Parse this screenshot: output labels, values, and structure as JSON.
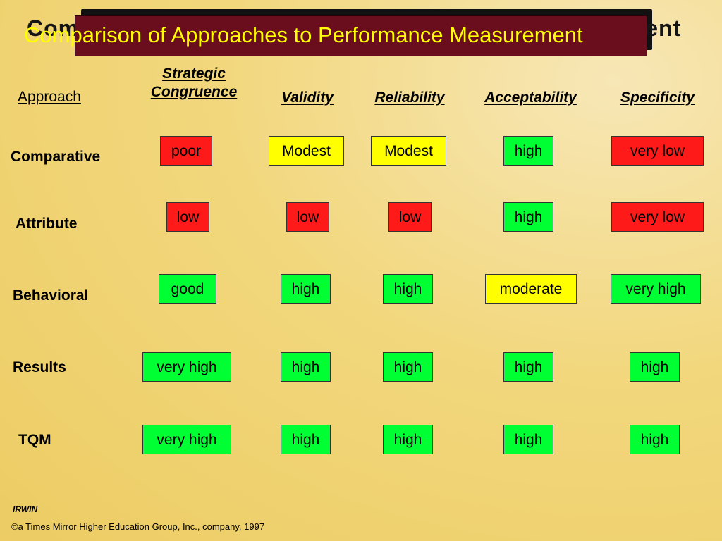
{
  "title": "Comparison of Approaches to Performance Measurement",
  "headers": {
    "approach": "Approach",
    "strategic_congruence": "Strategic Congruence",
    "validity": "Validity",
    "reliability": "Reliability",
    "acceptability": "Acceptability",
    "specificity": "Specificity"
  },
  "rows": [
    {
      "label": "Comparative",
      "cells": [
        {
          "value": "poor",
          "color": "#ff1a1a"
        },
        {
          "value": "Modest",
          "color": "#ffff00"
        },
        {
          "value": "Modest",
          "color": "#ffff00"
        },
        {
          "value": "high",
          "color": "#00ff33"
        },
        {
          "value": "very low",
          "color": "#ff1a1a"
        }
      ]
    },
    {
      "label": "Attribute",
      "cells": [
        {
          "value": "low",
          "color": "#ff1a1a"
        },
        {
          "value": "low",
          "color": "#ff1a1a"
        },
        {
          "value": "low",
          "color": "#ff1a1a"
        },
        {
          "value": "high",
          "color": "#00ff33"
        },
        {
          "value": "very low",
          "color": "#ff1a1a"
        }
      ]
    },
    {
      "label": "Behavioral",
      "cells": [
        {
          "value": "good",
          "color": "#00ff33"
        },
        {
          "value": "high",
          "color": "#00ff33"
        },
        {
          "value": "high",
          "color": "#00ff33"
        },
        {
          "value": "moderate",
          "color": "#ffff00"
        },
        {
          "value": "very high",
          "color": "#00ff33"
        }
      ]
    },
    {
      "label": "Results",
      "cells": [
        {
          "value": "very high",
          "color": "#00ff33"
        },
        {
          "value": "high",
          "color": "#00ff33"
        },
        {
          "value": "high",
          "color": "#00ff33"
        },
        {
          "value": "high",
          "color": "#00ff33"
        },
        {
          "value": "high",
          "color": "#00ff33"
        }
      ]
    },
    {
      "label": "TQM",
      "cells": [
        {
          "value": "very high",
          "color": "#00ff33"
        },
        {
          "value": "high",
          "color": "#00ff33"
        },
        {
          "value": "high",
          "color": "#00ff33"
        },
        {
          "value": "high",
          "color": "#00ff33"
        },
        {
          "value": "high",
          "color": "#00ff33"
        }
      ]
    }
  ],
  "footer": {
    "publisher": "IRWIN",
    "copyright": "©a Times Mirror Higher Education Group, Inc., company, 1997"
  }
}
